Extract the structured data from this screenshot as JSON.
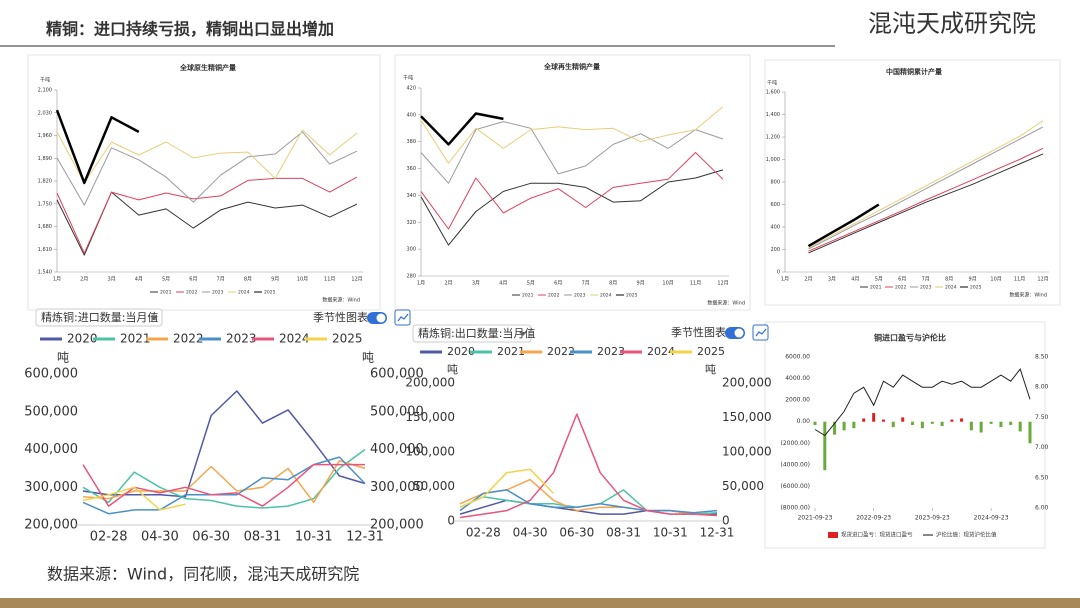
{
  "header": {
    "title": "精铜：进口持续亏损，精铜出口显出增加",
    "logo": "混沌天成研究院"
  },
  "footer": {
    "source": "数据来源：Wind，同花顺，混沌天成研究院"
  },
  "chart_data": [
    {
      "type": "line",
      "title": "全球原生精铜产量",
      "unit": "千吨",
      "source": "数据来源：Wind",
      "categories": [
        "1月",
        "2月",
        "3月",
        "4月",
        "5月",
        "6月",
        "7月",
        "8月",
        "9月",
        "10月",
        "11月",
        "12月"
      ],
      "ylim": [
        1540,
        2100
      ],
      "yticks": [
        {
          "value": 1540,
          "label": "1,540"
        },
        {
          "value": 1610,
          "label": "1,610"
        },
        {
          "value": 1680,
          "label": "1,680"
        },
        {
          "value": 1750,
          "label": "1,750"
        },
        {
          "value": 1820,
          "label": "1,820"
        },
        {
          "value": 1890,
          "label": "1,890"
        },
        {
          "value": 1960,
          "label": "1,960"
        },
        {
          "value": 2030,
          "label": "2,030"
        },
        {
          "value": 2100,
          "label": "2,100"
        }
      ],
      "series": [
        {
          "name": "2021",
          "color": "#333333",
          "width": 1,
          "values": [
            1762,
            1592,
            1786,
            1715,
            1734,
            1675,
            1731,
            1755,
            1737,
            1746,
            1709,
            1749
          ]
        },
        {
          "name": "2022",
          "color": "#e0405a",
          "width": 1,
          "values": [
            1783,
            1598,
            1786,
            1762,
            1783,
            1765,
            1774,
            1822,
            1828,
            1828,
            1786,
            1832
          ]
        },
        {
          "name": "2023",
          "color": "#9a9a9a",
          "width": 1,
          "values": [
            1891,
            1746,
            1922,
            1885,
            1832,
            1755,
            1838,
            1894,
            1903,
            1971,
            1872,
            1912
          ]
        },
        {
          "name": "2024",
          "color": "#e6cf7a",
          "width": 1,
          "values": [
            1971,
            1814,
            1940,
            1900,
            1940,
            1891,
            1906,
            1909,
            1828,
            1977,
            1900,
            1968
          ]
        },
        {
          "name": "2025",
          "color": "#000000",
          "width": 2.5,
          "values": [
            2038,
            1814,
            2016,
            1971,
            null,
            null,
            null,
            null,
            null,
            null,
            null,
            null
          ]
        }
      ]
    },
    {
      "type": "line",
      "title": "全球再生精铜产量",
      "unit": "千吨",
      "source": "数据来源：Wind",
      "categories": [
        "1月",
        "2月",
        "3月",
        "4月",
        "5月",
        "6月",
        "7月",
        "8月",
        "9月",
        "10月",
        "11月",
        "12月"
      ],
      "ylim": [
        280,
        420
      ],
      "yticks": [
        280,
        300,
        320,
        340,
        360,
        380,
        400,
        420
      ],
      "series": [
        {
          "name": "2021",
          "color": "#333333",
          "width": 1,
          "values": [
            339,
            303,
            328,
            343,
            349,
            349,
            346,
            335,
            336,
            350,
            353,
            359
          ]
        },
        {
          "name": "2022",
          "color": "#e0405a",
          "width": 1,
          "values": [
            343,
            315,
            353,
            327,
            338,
            345,
            331,
            346,
            349,
            352,
            372,
            352
          ]
        },
        {
          "name": "2023",
          "color": "#9a9a9a",
          "width": 1,
          "values": [
            372,
            349,
            389,
            395,
            390,
            356,
            362,
            378,
            386,
            375,
            389,
            382
          ]
        },
        {
          "name": "2024",
          "color": "#e6cf7a",
          "width": 1,
          "values": [
            396,
            364,
            390,
            375,
            389,
            391,
            389,
            390,
            380,
            385,
            389,
            406
          ]
        },
        {
          "name": "2025",
          "color": "#000000",
          "width": 2.5,
          "values": [
            399,
            378,
            401,
            397,
            null,
            null,
            null,
            null,
            null,
            null,
            null,
            null
          ]
        }
      ]
    },
    {
      "type": "line",
      "title": "中国精铜累计产量",
      "unit": "千吨",
      "source": "数据来源：Wind",
      "categories": [
        "1月",
        "2月",
        "3月",
        "4月",
        "5月",
        "6月",
        "7月",
        "8月",
        "9月",
        "10月",
        "11月",
        "12月"
      ],
      "ylim": [
        0,
        1600
      ],
      "yticks": [
        0,
        200,
        400,
        600,
        800,
        {
          "value": 1000,
          "label": "1,000"
        },
        {
          "value": 1200,
          "label": "1,200"
        },
        {
          "value": 1400,
          "label": "1,400"
        },
        {
          "value": 1600,
          "label": "1,600"
        }
      ],
      "series": [
        {
          "name": "2021",
          "color": "#333333",
          "width": 1,
          "values": [
            null,
            170,
            260,
            350,
            440,
            530,
            620,
            700,
            780,
            870,
            960,
            1050
          ]
        },
        {
          "name": "2022",
          "color": "#e0405a",
          "width": 1,
          "values": [
            null,
            185,
            275,
            365,
            455,
            545,
            640,
            730,
            820,
            910,
            1000,
            1100
          ]
        },
        {
          "name": "2023",
          "color": "#9a9a9a",
          "width": 1,
          "values": [
            null,
            205,
            310,
            420,
            520,
            630,
            740,
            850,
            960,
            1070,
            1180,
            1290
          ]
        },
        {
          "name": "2024",
          "color": "#e6cf7a",
          "width": 1,
          "values": [
            null,
            215,
            325,
            435,
            545,
            655,
            765,
            875,
            985,
            1095,
            1205,
            1345
          ]
        },
        {
          "name": "2025",
          "color": "#000000",
          "width": 2.5,
          "values": [
            null,
            230,
            350,
            470,
            600,
            null,
            null,
            null,
            null,
            null,
            null,
            null
          ]
        }
      ]
    },
    {
      "type": "line",
      "selector": "精炼铜:进口数量:当月值",
      "toggle_label": "季节性图表",
      "unit": "吨",
      "categories": [
        null,
        "02-28",
        null,
        "04-30",
        null,
        "06-30",
        null,
        "08-31",
        null,
        "10-31",
        null,
        "12-31"
      ],
      "ylim": [
        200000,
        600000
      ],
      "yticks": [
        {
          "value": 200000,
          "label": "200,000"
        },
        {
          "value": 300000,
          "label": "300,000"
        },
        {
          "value": 400000,
          "label": "400,000"
        },
        {
          "value": 500000,
          "label": "500,000"
        },
        {
          "value": 600000,
          "label": "600,000"
        }
      ],
      "y2lim": [
        200000,
        600000
      ],
      "y2ticks": [
        {
          "value": 200000,
          "label": "200,000"
        },
        {
          "value": 300000,
          "label": "300,000"
        },
        {
          "value": 400000,
          "label": "400,000"
        },
        {
          "value": 500000,
          "label": "500,000"
        },
        {
          "value": 600000,
          "label": "600,000"
        }
      ],
      "series": [
        {
          "name": "2020",
          "color": "#5058a8",
          "width": 1.5,
          "values": [
            290000,
            280000,
            280000,
            280000,
            275000,
            490000,
            555000,
            470000,
            505000,
            420000,
            330000,
            310000
          ]
        },
        {
          "name": "2021",
          "color": "#4cc3a8",
          "width": 1.5,
          "values": [
            300000,
            260000,
            340000,
            300000,
            270000,
            265000,
            250000,
            245000,
            250000,
            270000,
            350000,
            400000
          ]
        },
        {
          "name": "2022",
          "color": "#f6a54c",
          "width": 1.5,
          "values": [
            275000,
            270000,
            290000,
            290000,
            290000,
            355000,
            290000,
            300000,
            350000,
            260000,
            370000,
            350000
          ]
        },
        {
          "name": "2023",
          "color": "#4a90c8",
          "width": 1.5,
          "values": [
            260000,
            230000,
            240000,
            240000,
            280000,
            280000,
            280000,
            325000,
            320000,
            360000,
            380000,
            310000
          ]
        },
        {
          "name": "2024",
          "color": "#e8557c",
          "width": 1.5,
          "values": [
            360000,
            250000,
            300000,
            285000,
            300000,
            280000,
            285000,
            250000,
            300000,
            360000,
            360000,
            360000
          ]
        },
        {
          "name": "2025",
          "color": "#f3d34a",
          "width": 1.5,
          "values": [
            265000,
            280000,
            300000,
            240000,
            255000,
            null,
            null,
            null,
            null,
            null,
            null,
            null
          ]
        }
      ]
    },
    {
      "type": "line",
      "selector": "精炼铜:出口数量:当月值",
      "toggle_label": "季节性图表",
      "unit": "吨",
      "categories": [
        null,
        "02-28",
        null,
        "04-30",
        null,
        "06-30",
        null,
        "08-31",
        null,
        "10-31",
        null,
        "12-31"
      ],
      "ylim": [
        0,
        200000
      ],
      "yticks": [
        0,
        {
          "value": 50000,
          "label": "50,000"
        },
        {
          "value": 100000,
          "label": "100,000"
        },
        {
          "value": 150000,
          "label": "150,000"
        },
        {
          "value": 200000,
          "label": "200,000"
        }
      ],
      "y2lim": [
        0,
        200000
      ],
      "y2ticks": [
        0,
        {
          "value": 50000,
          "label": "50,000"
        },
        {
          "value": 100000,
          "label": "100,000"
        },
        {
          "value": 150000,
          "label": "150,000"
        },
        {
          "value": 200000,
          "label": "200,000"
        }
      ],
      "series": [
        {
          "name": "2020",
          "color": "#5058a8",
          "width": 1.5,
          "values": [
            10000,
            20000,
            30000,
            25000,
            20000,
            15000,
            10000,
            10000,
            15000,
            15000,
            10000,
            10000
          ]
        },
        {
          "name": "2021",
          "color": "#4cc3a8",
          "width": 1.5,
          "values": [
            20000,
            35000,
            30000,
            25000,
            25000,
            20000,
            25000,
            45000,
            15000,
            10000,
            10000,
            12000
          ]
        },
        {
          "name": "2022",
          "color": "#f6a54c",
          "width": 1.5,
          "values": [
            25000,
            40000,
            45000,
            60000,
            30000,
            15000,
            20000,
            20000,
            15000,
            15000,
            10000,
            8000
          ]
        },
        {
          "name": "2023",
          "color": "#4a90c8",
          "width": 1.5,
          "values": [
            15000,
            40000,
            45000,
            25000,
            20000,
            20000,
            25000,
            20000,
            15000,
            15000,
            12000,
            15000
          ]
        },
        {
          "name": "2024",
          "color": "#e8557c",
          "width": 1.5,
          "values": [
            5000,
            10000,
            15000,
            30000,
            70000,
            155000,
            70000,
            30000,
            15000,
            10000,
            10000,
            8000
          ]
        },
        {
          "name": "2025",
          "color": "#f3d34a",
          "width": 1.5,
          "values": [
            20000,
            35000,
            70000,
            75000,
            40000,
            null,
            null,
            null,
            null,
            null,
            null,
            null
          ]
        }
      ]
    },
    {
      "type": "combo",
      "title": "铜进口盈亏与沪伦比",
      "x": [
        "2021-09-23",
        "2021-11-23",
        "2022-01-23",
        "2022-03-23",
        "2022-05-23",
        "2022-07-23",
        "2022-09-23",
        "2022-11-23",
        "2023-01-23",
        "2023-03-23",
        "2023-05-23",
        "2023-07-23",
        "2023-09-23",
        "2023-11-23",
        "2024-01-23",
        "2024-03-23",
        "2024-05-23",
        "2024-07-23",
        "2024-09-23",
        "2024-11-23",
        "2025-01-23",
        "2025-03-23",
        "2025-05-23"
      ],
      "xlim": [
        "2021-09-23",
        "2025-05-23"
      ],
      "xticks": [
        "2021-09-23",
        "2022-09-23",
        "2023-09-23",
        "2024-09-23"
      ],
      "ylim": [
        -8000,
        6000
      ],
      "yticks": [
        {
          "value": -8000,
          "label": "(8000.00)"
        },
        {
          "value": -6000,
          "label": "(6000.00)"
        },
        {
          "value": -4000,
          "label": "(4000.00)"
        },
        {
          "value": -2000,
          "label": "(2000.00)"
        },
        {
          "value": 0,
          "label": "0.00"
        },
        {
          "value": 2000,
          "label": "2000.00"
        },
        {
          "value": 4000,
          "label": "4000.00"
        },
        {
          "value": 6000,
          "label": "6000.00"
        }
      ],
      "y2lim": [
        6,
        8.5
      ],
      "y2ticks": [
        {
          "value": 6,
          "label": "6.00"
        },
        {
          "value": 6.5,
          "label": "6.50"
        },
        {
          "value": 7,
          "label": "7.00"
        },
        {
          "value": 7.5,
          "label": "7.50"
        },
        {
          "value": 8,
          "label": "8.00"
        },
        {
          "value": 8.5,
          "label": "8.50"
        }
      ],
      "series": [
        {
          "name": "现货进口盈亏：现货进口盈亏",
          "kind": "bar",
          "color": "#e02020",
          "negative_color": "#6aaa3a",
          "values": [
            -300,
            -4500,
            -1200,
            -800,
            -600,
            300,
            800,
            200,
            -500,
            400,
            -300,
            -600,
            -200,
            -400,
            200,
            300,
            -800,
            -1000,
            -200,
            -500,
            -300,
            -900,
            -2000
          ]
        },
        {
          "name": "沪伦比值：现货沪伦比值",
          "kind": "line",
          "axis": "y2",
          "color": "#222222",
          "values": [
            7.3,
            7.2,
            7.4,
            7.6,
            7.9,
            8.0,
            7.7,
            8.1,
            8.0,
            8.2,
            8.1,
            8.0,
            8.0,
            8.1,
            8.05,
            8.1,
            8.0,
            8.0,
            8.1,
            8.2,
            8.1,
            8.3,
            7.8
          ]
        }
      ]
    }
  ]
}
